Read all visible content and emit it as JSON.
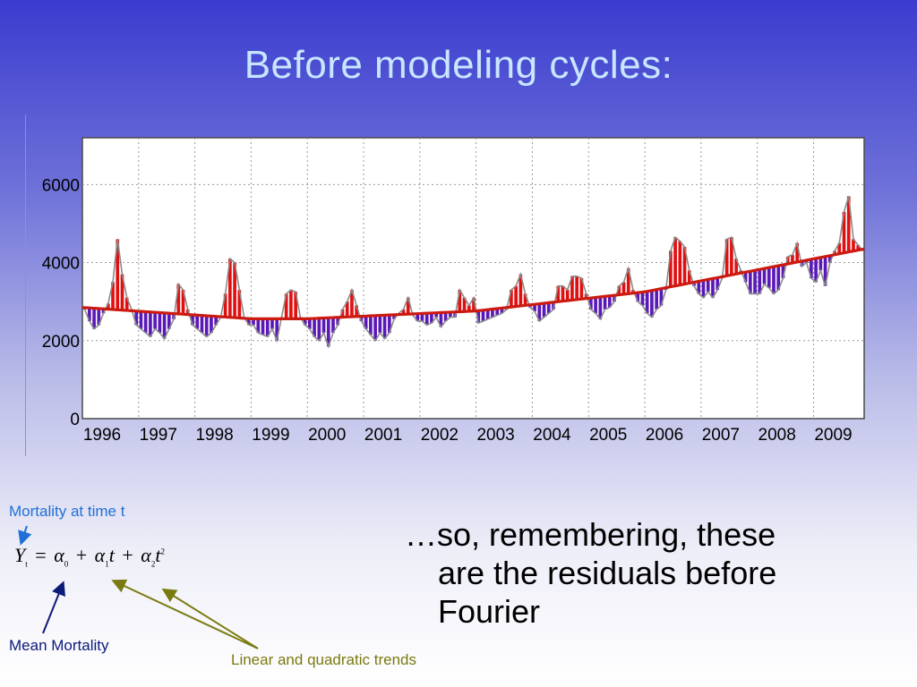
{
  "slide": {
    "title": "Before modeling cycles:",
    "formula": {
      "lhs": "Y",
      "lhs_sub": "t",
      "a0": "α",
      "a0_sub": "0",
      "a1": "α",
      "a1_sub": "1",
      "t1": "t",
      "a2": "α",
      "a2_sub": "2",
      "t2": "t",
      "t2_sup": "2",
      "eq": "=",
      "plus": "+"
    },
    "annotations": {
      "mortality": "Mortality at time t",
      "mean": "Mean Mortality",
      "trends": "Linear and quadratic trends"
    },
    "body": {
      "line1": "…so, remembering, these",
      "line2": "are the residuals before",
      "line3": "Fourier"
    },
    "colors": {
      "positive_bar": "#e01010",
      "negative_bar": "#5a18b8",
      "trend": "#cc1a10",
      "series": "#8a8a8a",
      "mortality_arrow": "#1f6fd6",
      "mean_arrow": "#0c1a7a",
      "trend_arrow": "#7a7a10"
    }
  },
  "chart_data": {
    "type": "bar",
    "title": "",
    "xlabel": "",
    "ylabel": "",
    "x_tick_labels": [
      "1996",
      "1997",
      "1998",
      "1999",
      "2000",
      "2001",
      "2002",
      "2003",
      "2004",
      "2005",
      "2006",
      "2007",
      "2008",
      "2009"
    ],
    "y_ticks": [
      0,
      2000,
      4000,
      6000
    ],
    "ylim": [
      0,
      7200
    ],
    "xlim": [
      1996,
      2009.9
    ],
    "grid": true,
    "series": [
      {
        "kind": "monthly_values",
        "start": 1996,
        "step_months": 1,
        "values": [
          2800,
          2500,
          2300,
          2400,
          2700,
          2950,
          3500,
          4600,
          3700,
          3100,
          2800,
          2400,
          2300,
          2200,
          2100,
          2300,
          2200,
          2050,
          2300,
          2550,
          3450,
          3300,
          2800,
          2400,
          2300,
          2200,
          2100,
          2200,
          2400,
          2600,
          3200,
          4100,
          4000,
          3300,
          2600,
          2400,
          2400,
          2200,
          2150,
          2100,
          2300,
          2000,
          2600,
          3200,
          3300,
          3250,
          2600,
          2400,
          2300,
          2100,
          2000,
          2200,
          1850,
          2200,
          2400,
          2800,
          3000,
          3300,
          2900,
          2500,
          2300,
          2150,
          2000,
          2200,
          2050,
          2200,
          2550,
          2700,
          2800,
          3100,
          2650,
          2500,
          2500,
          2400,
          2450,
          2600,
          2350,
          2500,
          2600,
          2600,
          3300,
          3100,
          2900,
          3100,
          2450,
          2500,
          2550,
          2600,
          2650,
          2700,
          2800,
          3300,
          3400,
          3700,
          3200,
          2850,
          2750,
          2500,
          2600,
          2700,
          2800,
          3400,
          3400,
          3300,
          3650,
          3650,
          3600,
          3200,
          2800,
          2700,
          2550,
          2800,
          2850,
          3000,
          3400,
          3500,
          3850,
          3300,
          3000,
          2900,
          2700,
          2600,
          2800,
          2900,
          3300,
          4300,
          4650,
          4550,
          4400,
          3800,
          3400,
          3200,
          3100,
          3250,
          3100,
          3300,
          3600,
          4600,
          4650,
          4100,
          3800,
          3500,
          3200,
          3200,
          3200,
          3450,
          3350,
          3200,
          3300,
          3600,
          4150,
          4200,
          4500,
          3900,
          4000,
          3600,
          3500,
          3800,
          3400,
          4000,
          4300,
          4500,
          5300,
          5700,
          4600,
          4450,
          4300,
          4100
        ]
      },
      {
        "name": "",
        "kind": "quadratic_trend",
        "points": [
          [
            1996,
            2850
          ],
          [
            1999,
            2560
          ],
          [
            2000,
            2560
          ],
          [
            2003,
            2760
          ],
          [
            2006,
            3250
          ],
          [
            2009.9,
            4350
          ]
        ]
      }
    ]
  }
}
